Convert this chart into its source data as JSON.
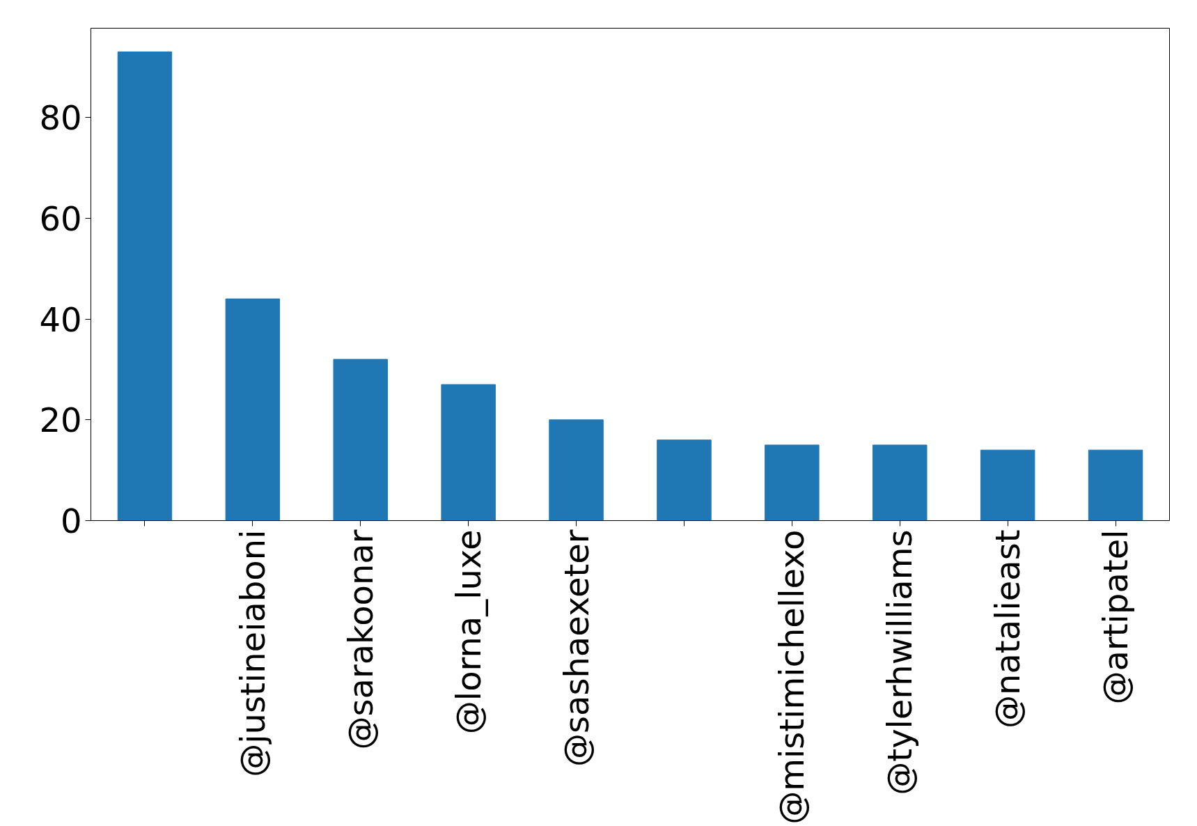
{
  "chart_data": {
    "type": "bar",
    "categories": [
      null,
      "@justineiaboni",
      "@sarakoonar",
      "@lorna_luxe",
      "@sashaexeter",
      null,
      "@mistimichellexo",
      "@tylerhwilliams",
      "@natalieast",
      "@artipatel"
    ],
    "values": [
      93,
      44,
      32,
      27,
      20,
      16,
      15,
      15,
      14,
      14
    ],
    "color": "#1f77b4",
    "ylim": [
      0,
      97.7
    ],
    "yticks": [
      0,
      20,
      40,
      60,
      80
    ],
    "grid": false
  }
}
